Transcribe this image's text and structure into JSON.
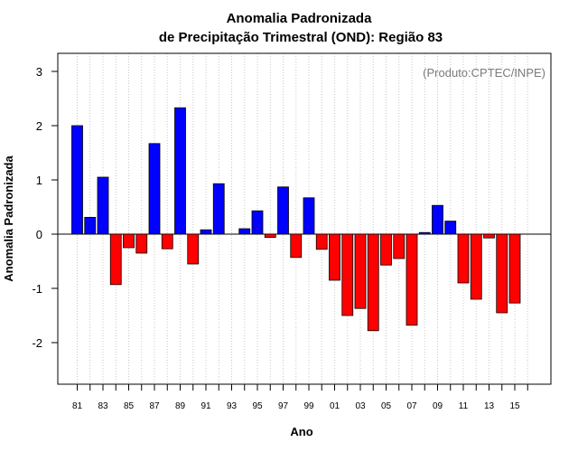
{
  "chart_data": {
    "type": "bar",
    "title_line1": "Anomalia Padronizada",
    "title_line2": "de Precipitação Trimestral (OND): Região 83",
    "xlabel": "Ano",
    "ylabel": "Anomalia Padronizada",
    "credit": "(Produto:CPTEC/INPE)",
    "ylim": [
      -2.8,
      3.3
    ],
    "yticks": [
      "-2",
      "-1",
      "0",
      "1",
      "2",
      "3"
    ],
    "xtick_labels": [
      "81",
      "83",
      "85",
      "87",
      "89",
      "91",
      "93",
      "95",
      "97",
      "99",
      "01",
      "03",
      "05",
      "07",
      "09",
      "11",
      "13",
      "15"
    ],
    "years": [
      "1981",
      "1982",
      "1983",
      "1984",
      "1985",
      "1986",
      "1987",
      "1988",
      "1989",
      "1990",
      "1991",
      "1992",
      "1993",
      "1994",
      "1995",
      "1996",
      "1997",
      "1998",
      "1999",
      "2000",
      "2001",
      "2002",
      "2003",
      "2004",
      "2005",
      "2006",
      "2007",
      "2008",
      "2009",
      "2010",
      "2011",
      "2012",
      "2013",
      "2014",
      "2015",
      "2016"
    ],
    "values": [
      2.0,
      0.31,
      1.05,
      -0.93,
      -0.25,
      -0.35,
      1.67,
      -0.27,
      2.33,
      -0.55,
      0.08,
      0.93,
      0.0,
      0.1,
      0.43,
      -0.06,
      0.87,
      -0.43,
      0.67,
      -0.28,
      -0.85,
      -1.5,
      -1.37,
      -1.78,
      -0.57,
      -0.45,
      -1.68,
      0.03,
      0.53,
      0.24,
      -0.9,
      -1.2,
      -0.07,
      -1.45,
      -1.27,
      null
    ],
    "positive_color": "#0000ff",
    "negative_color": "#ff0000",
    "grid": "vertical-dotted"
  }
}
